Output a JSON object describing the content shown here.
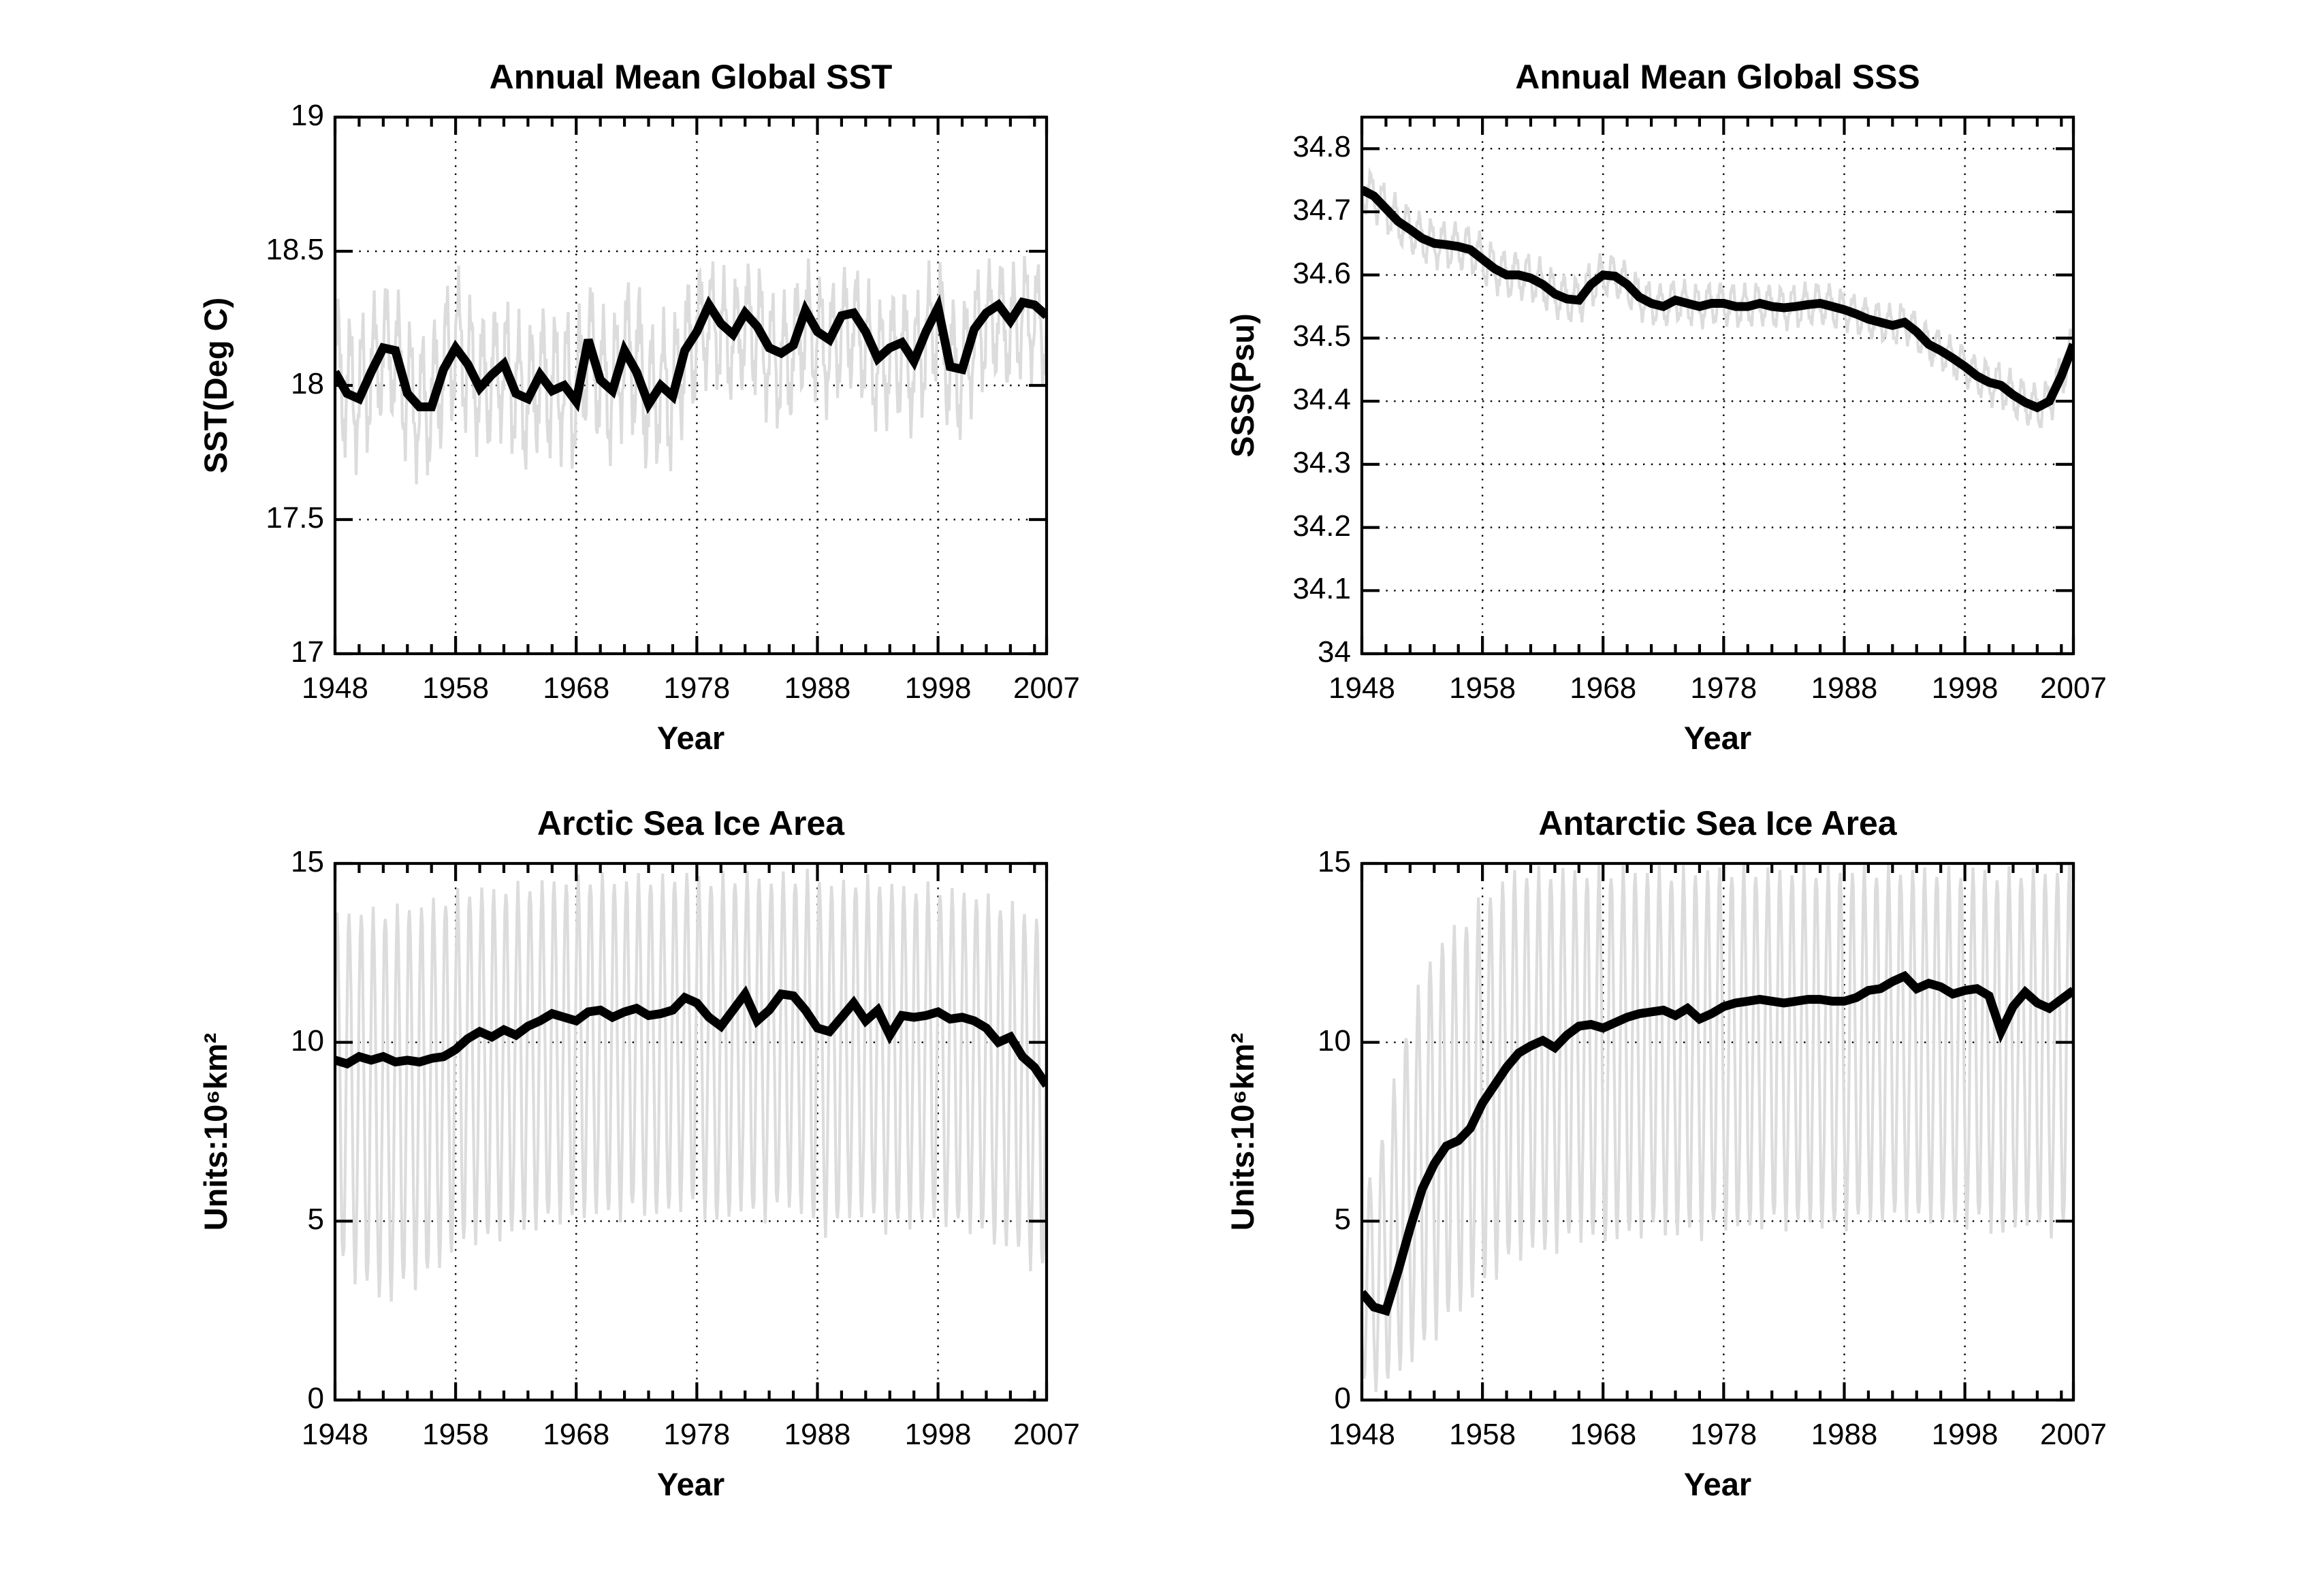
{
  "figure": {
    "background": "#ffffff",
    "colors": {
      "annual_line": "#000000",
      "monthly_line": "#dcdcdc",
      "axis": "#000000",
      "grid_dots": "#000000",
      "text": "#000000"
    }
  },
  "chart_data": [
    {
      "id": "sst",
      "type": "line",
      "title": "Annual Mean Global SST",
      "xlabel": "Year",
      "ylabel": "SST(Deg C)",
      "xlim": [
        1948,
        2007
      ],
      "ylim": [
        17,
        19
      ],
      "xticks": [
        1948,
        1958,
        1968,
        1978,
        1988,
        1998,
        2007
      ],
      "xtick_labels": [
        "1948",
        "1958",
        "1968",
        "1978",
        "1988",
        "1998",
        "2007"
      ],
      "xminor_step": 2,
      "yticks": [
        17,
        17.5,
        18,
        18.5,
        19
      ],
      "ytick_labels": [
        "17",
        "17.5",
        "18",
        "18.5",
        "19"
      ],
      "grid": true,
      "legend_position": "none",
      "series_desc": [
        {
          "name": "monthly mean",
          "color": "#dcdcdc"
        },
        {
          "name": "annual mean",
          "color": "#000000"
        }
      ],
      "years_start": 1948,
      "season_phase": 3,
      "noise": 0.3,
      "annual": [
        18.05,
        17.97,
        17.95,
        18.05,
        18.14,
        18.13,
        17.97,
        17.92,
        17.92,
        18.06,
        18.14,
        18.08,
        17.99,
        18.04,
        18.08,
        17.97,
        17.95,
        18.04,
        17.98,
        18.0,
        17.94,
        18.17,
        18.02,
        17.98,
        18.13,
        18.05,
        17.93,
        18.0,
        17.96,
        18.13,
        18.2,
        18.3,
        18.23,
        18.19,
        18.27,
        18.22,
        18.14,
        18.12,
        18.15,
        18.28,
        18.2,
        18.17,
        18.26,
        18.27,
        18.2,
        18.1,
        18.14,
        18.16,
        18.09,
        18.2,
        18.29,
        18.07,
        18.06,
        18.21,
        18.27,
        18.3,
        18.24,
        18.31,
        18.3,
        18.26
      ],
      "env_max": [
        18.38,
        18.3,
        18.28,
        18.35,
        18.42,
        18.4,
        18.28,
        18.22,
        18.25,
        18.38,
        18.47,
        18.38,
        18.3,
        18.33,
        18.36,
        18.3,
        18.25,
        18.33,
        18.3,
        18.32,
        18.28,
        18.44,
        18.33,
        18.28,
        18.42,
        18.46,
        18.25,
        18.3,
        18.28,
        18.42,
        18.48,
        18.5,
        18.46,
        18.42,
        18.48,
        18.5,
        18.38,
        18.36,
        18.4,
        18.5,
        18.44,
        18.4,
        18.47,
        18.48,
        18.42,
        18.34,
        18.38,
        18.41,
        18.35,
        18.45,
        18.52,
        18.36,
        18.34,
        18.45,
        18.48,
        18.5,
        18.46,
        18.51,
        18.5,
        18.47
      ],
      "env_min": [
        17.75,
        17.68,
        17.66,
        17.75,
        17.85,
        17.83,
        17.66,
        17.62,
        17.63,
        17.76,
        17.85,
        17.78,
        17.7,
        17.74,
        17.78,
        17.68,
        17.63,
        17.74,
        17.68,
        17.7,
        17.64,
        17.86,
        17.72,
        17.66,
        17.82,
        17.75,
        17.62,
        17.68,
        17.64,
        17.83,
        17.9,
        17.99,
        17.94,
        17.9,
        17.97,
        17.92,
        17.84,
        17.8,
        17.84,
        17.97,
        17.9,
        17.86,
        17.95,
        17.96,
        17.89,
        17.78,
        17.83,
        17.85,
        17.77,
        17.89,
        17.99,
        17.76,
        17.76,
        17.91,
        17.97,
        18.0,
        17.94,
        18.01,
        18.0,
        17.96
      ]
    },
    {
      "id": "sss",
      "type": "line",
      "title": "Annual Mean Global SSS",
      "xlabel": "Year",
      "ylabel": "SSS(Psu)",
      "xlim": [
        1948,
        2007
      ],
      "ylim": [
        34,
        34.85
      ],
      "xticks": [
        1948,
        1958,
        1968,
        1978,
        1988,
        1998,
        2007
      ],
      "xtick_labels": [
        "1948",
        "1958",
        "1968",
        "1978",
        "1988",
        "1998",
        "2007"
      ],
      "xminor_step": 2,
      "yticks": [
        34,
        34.1,
        34.2,
        34.3,
        34.4,
        34.5,
        34.6,
        34.7,
        34.8
      ],
      "ytick_labels": [
        "34",
        "34.1",
        "34.2",
        "34.3",
        "34.4",
        "34.5",
        "34.6",
        "34.7",
        "34.8"
      ],
      "grid": true,
      "legend_position": "none",
      "series_desc": [
        {
          "name": "monthly mean",
          "color": "#dcdcdc"
        },
        {
          "name": "annual mean",
          "color": "#000000"
        }
      ],
      "years_start": 1948,
      "season_phase": 9,
      "noise": 0.25,
      "annual": [
        34.735,
        34.725,
        34.705,
        34.685,
        34.672,
        34.658,
        34.65,
        34.648,
        34.645,
        34.64,
        34.625,
        34.61,
        34.6,
        34.6,
        34.595,
        34.585,
        34.57,
        34.562,
        34.56,
        34.585,
        34.6,
        34.598,
        34.585,
        34.565,
        34.555,
        34.55,
        34.56,
        34.555,
        34.55,
        34.555,
        34.555,
        34.55,
        34.55,
        34.555,
        34.55,
        34.548,
        34.55,
        34.553,
        34.555,
        34.55,
        34.545,
        34.538,
        34.53,
        34.525,
        34.52,
        34.525,
        34.51,
        34.49,
        34.48,
        34.468,
        34.455,
        34.44,
        34.43,
        34.425,
        34.41,
        34.398,
        34.39,
        34.4,
        34.44,
        34.49
      ],
      "env_max": [
        34.777,
        34.767,
        34.747,
        34.727,
        34.714,
        34.7,
        34.692,
        34.69,
        34.687,
        34.682,
        34.667,
        34.652,
        34.642,
        34.642,
        34.637,
        34.627,
        34.612,
        34.604,
        34.602,
        34.627,
        34.638,
        34.636,
        34.623,
        34.603,
        34.593,
        34.588,
        34.598,
        34.593,
        34.588,
        34.593,
        34.593,
        34.588,
        34.588,
        34.593,
        34.588,
        34.586,
        34.588,
        34.591,
        34.593,
        34.588,
        34.58,
        34.573,
        34.565,
        34.56,
        34.555,
        34.56,
        34.545,
        34.525,
        34.515,
        34.503,
        34.49,
        34.475,
        34.47,
        34.465,
        34.45,
        34.438,
        34.43,
        34.44,
        34.48,
        34.53
      ],
      "env_min": [
        34.693,
        34.683,
        34.663,
        34.643,
        34.63,
        34.616,
        34.608,
        34.606,
        34.603,
        34.598,
        34.583,
        34.568,
        34.558,
        34.558,
        34.553,
        34.543,
        34.528,
        34.52,
        34.518,
        34.543,
        34.562,
        34.56,
        34.547,
        34.527,
        34.517,
        34.512,
        34.522,
        34.517,
        34.512,
        34.517,
        34.517,
        34.512,
        34.512,
        34.517,
        34.512,
        34.51,
        34.512,
        34.515,
        34.517,
        34.512,
        34.51,
        34.503,
        34.495,
        34.49,
        34.485,
        34.49,
        34.475,
        34.455,
        34.445,
        34.433,
        34.42,
        34.405,
        34.39,
        34.385,
        34.37,
        34.358,
        34.35,
        34.36,
        34.4,
        34.45
      ]
    },
    {
      "id": "arctic-ice",
      "type": "line",
      "title": "Arctic Sea Ice Area",
      "xlabel": "Year",
      "ylabel": "Units:10⁶km²",
      "xlim": [
        1948,
        2007
      ],
      "ylim": [
        0,
        15
      ],
      "xticks": [
        1948,
        1958,
        1968,
        1978,
        1988,
        1998,
        2007
      ],
      "xtick_labels": [
        "1948",
        "1958",
        "1968",
        "1978",
        "1988",
        "1998",
        "2007"
      ],
      "xminor_step": 2,
      "yticks": [
        0,
        5,
        10,
        15
      ],
      "ytick_labels": [
        "0",
        "5",
        "10",
        "15"
      ],
      "grid": true,
      "legend_position": "none",
      "series_desc": [
        {
          "name": "monthly mean",
          "color": "#dcdcdc"
        },
        {
          "name": "annual mean",
          "color": "#000000"
        }
      ],
      "years_start": 1948,
      "season_phase": 2,
      "noise": 0.04,
      "annual": [
        9.5,
        9.4,
        9.6,
        9.5,
        9.6,
        9.45,
        9.5,
        9.45,
        9.55,
        9.6,
        9.8,
        10.1,
        10.3,
        10.15,
        10.35,
        10.2,
        10.45,
        10.6,
        10.8,
        10.7,
        10.6,
        10.85,
        10.9,
        10.7,
        10.85,
        10.95,
        10.75,
        10.8,
        10.9,
        11.25,
        11.1,
        10.7,
        10.45,
        10.9,
        11.35,
        10.6,
        10.9,
        11.35,
        11.3,
        10.9,
        10.4,
        10.3,
        10.7,
        11.1,
        10.6,
        10.9,
        10.2,
        10.75,
        10.7,
        10.75,
        10.85,
        10.65,
        10.7,
        10.6,
        10.4,
        10.0,
        10.15,
        9.6,
        9.3,
        8.8
      ],
      "env_max": [
        13.7,
        13.8,
        13.9,
        13.8,
        13.9,
        13.9,
        14.0,
        14.0,
        14.1,
        14.2,
        14.3,
        14.4,
        14.5,
        14.4,
        14.5,
        14.5,
        14.6,
        14.6,
        14.7,
        14.7,
        14.7,
        14.8,
        14.8,
        14.7,
        14.7,
        14.8,
        14.8,
        14.7,
        14.8,
        14.9,
        14.8,
        14.7,
        14.8,
        14.8,
        14.9,
        14.8,
        14.7,
        14.8,
        14.8,
        14.9,
        14.8,
        14.6,
        14.6,
        14.7,
        14.7,
        14.7,
        14.6,
        14.5,
        14.5,
        14.5,
        14.5,
        14.4,
        14.4,
        14.3,
        14.2,
        14.1,
        14.0,
        13.9,
        13.7,
        13.6
      ],
      "env_min": [
        3.9,
        3.5,
        3.1,
        2.9,
        2.6,
        2.6,
        3.2,
        3.0,
        3.4,
        3.7,
        4.0,
        4.3,
        4.3,
        4.2,
        4.5,
        4.4,
        4.6,
        4.7,
        4.9,
        4.9,
        4.8,
        5.0,
        5.1,
        4.9,
        5.0,
        5.2,
        5.0,
        5.0,
        5.1,
        5.3,
        5.2,
        4.9,
        4.7,
        5.0,
        5.3,
        4.8,
        5.0,
        5.3,
        5.2,
        5.0,
        4.6,
        4.5,
        4.8,
        5.1,
        4.8,
        5.0,
        4.4,
        4.8,
        4.7,
        4.8,
        4.9,
        4.7,
        4.7,
        4.6,
        4.4,
        4.1,
        4.2,
        3.8,
        3.5,
        3.4
      ]
    },
    {
      "id": "antarctic-ice",
      "type": "line",
      "title": "Antarctic Sea Ice Area",
      "xlabel": "Year",
      "ylabel": "Units:10⁶km²",
      "xlim": [
        1948,
        2007
      ],
      "ylim": [
        0,
        15
      ],
      "xticks": [
        1948,
        1958,
        1968,
        1978,
        1988,
        1998,
        2007
      ],
      "xtick_labels": [
        "1948",
        "1958",
        "1968",
        "1978",
        "1988",
        "1998",
        "2007"
      ],
      "xminor_step": 2,
      "yticks": [
        0,
        5,
        10,
        15
      ],
      "ytick_labels": [
        "0",
        "5",
        "10",
        "15"
      ],
      "grid": true,
      "legend_position": "none",
      "series_desc": [
        {
          "name": "monthly mean",
          "color": "#dcdcdc"
        },
        {
          "name": "annual mean",
          "color": "#000000"
        }
      ],
      "years_start": 1948,
      "season_phase": 8,
      "noise": 0.04,
      "annual": [
        3.0,
        2.6,
        2.5,
        3.6,
        4.8,
        5.9,
        6.6,
        7.1,
        7.25,
        7.6,
        8.3,
        8.8,
        9.3,
        9.7,
        9.9,
        10.05,
        9.85,
        10.2,
        10.45,
        10.5,
        10.4,
        10.55,
        10.7,
        10.8,
        10.85,
        10.9,
        10.75,
        10.95,
        10.65,
        10.8,
        11.0,
        11.1,
        11.15,
        11.2,
        11.15,
        11.1,
        11.15,
        11.2,
        11.2,
        11.15,
        11.15,
        11.25,
        11.45,
        11.5,
        11.7,
        11.85,
        11.5,
        11.65,
        11.55,
        11.35,
        11.45,
        11.5,
        11.3,
        10.3,
        11.0,
        11.4,
        11.1,
        10.95,
        11.2,
        11.45
      ],
      "env_max": [
        6.0,
        6.5,
        8.0,
        9.5,
        11.0,
        12.0,
        12.8,
        13.2,
        13.4,
        13.8,
        14.2,
        14.5,
        14.8,
        15.0,
        15.0,
        14.9,
        15.0,
        15.0,
        15.0,
        14.9,
        15.0,
        15.0,
        15.0,
        15.0,
        15.0,
        15.0,
        14.9,
        15.0,
        15.0,
        15.0,
        15.0,
        15.0,
        15.0,
        15.0,
        15.0,
        15.0,
        15.0,
        15.0,
        15.0,
        15.0,
        15.0,
        15.0,
        15.0,
        15.0,
        15.0,
        15.0,
        15.0,
        15.0,
        15.0,
        14.9,
        15.0,
        15.0,
        15.0,
        14.8,
        15.0,
        15.0,
        14.9,
        15.0,
        15.0,
        15.0
      ],
      "env_min": [
        0.4,
        0.2,
        0.3,
        0.6,
        0.9,
        1.2,
        1.6,
        2.0,
        2.3,
        2.6,
        3.0,
        3.3,
        3.6,
        3.8,
        4.0,
        3.9,
        4.0,
        4.2,
        4.4,
        4.3,
        4.2,
        4.4,
        4.3,
        4.5,
        4.6,
        4.5,
        4.4,
        4.5,
        4.4,
        4.6,
        4.7,
        4.6,
        4.6,
        4.7,
        4.8,
        4.7,
        4.7,
        4.8,
        4.7,
        4.6,
        4.7,
        4.8,
        4.9,
        4.8,
        4.9,
        5.0,
        4.8,
        4.9,
        4.8,
        4.7,
        4.7,
        4.8,
        4.7,
        4.3,
        4.6,
        4.8,
        4.6,
        4.5,
        4.6,
        4.8
      ]
    }
  ]
}
